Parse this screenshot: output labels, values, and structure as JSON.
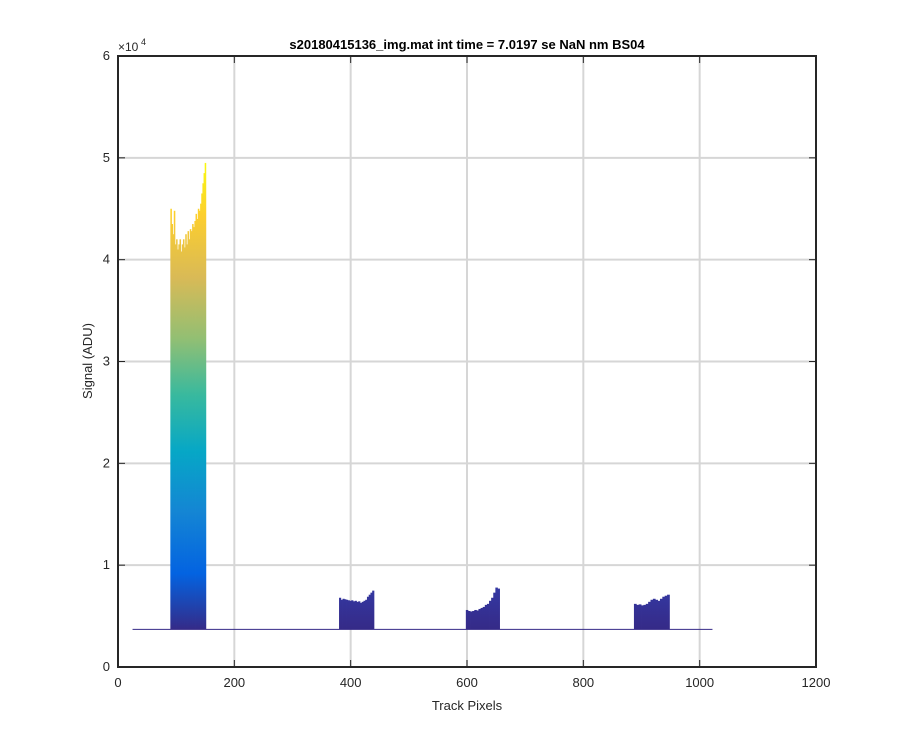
{
  "chart_data": {
    "type": "bar",
    "title": "s20180415136_img.mat int time = 7.0197 se  NaN nm BS04",
    "xlabel": "Track Pixels",
    "ylabel": "Signal (ADU)",
    "xlim": [
      0,
      1200
    ],
    "ylim": [
      0,
      60000
    ],
    "xticks": [
      "0",
      "200",
      "400",
      "600",
      "800",
      "1000",
      "1200"
    ],
    "yticks": [
      "0",
      "1",
      "2",
      "3",
      "4",
      "5",
      "6"
    ],
    "y_exponent_base": "×10",
    "y_exponent_power": "4",
    "grid": true,
    "colormap": "parula",
    "x_range": [
      25,
      1022
    ],
    "baseline_signal": 3700,
    "series": [
      {
        "x_start": 90,
        "x_end": 151,
        "values": [
          45000,
          43500,
          42500,
          44800,
          41500,
          42000,
          41000,
          41500,
          42000,
          40800,
          41500,
          42000,
          41200,
          42500,
          41500,
          42800,
          42000,
          43000,
          42800,
          43500,
          43200,
          43800,
          44500,
          44000,
          45000,
          44800,
          45500,
          46500,
          47500,
          48500,
          49500
        ]
      },
      {
        "x_start": 380,
        "x_end": 440,
        "values": [
          6800,
          6600,
          6700,
          6650,
          6600,
          6550,
          6500,
          6550,
          6450,
          6500,
          6400,
          6450,
          6300,
          6400,
          6500,
          6600,
          6900,
          7100,
          7300,
          7500
        ]
      },
      {
        "x_start": 598,
        "x_end": 656,
        "values": [
          5600,
          5500,
          5450,
          5500,
          5600,
          5550,
          5700,
          5800,
          5900,
          6100,
          6200,
          6500,
          6800,
          7300,
          7800,
          7700
        ]
      },
      {
        "x_start": 887,
        "x_end": 948,
        "values": [
          6200,
          6100,
          6150,
          6050,
          6100,
          6200,
          6400,
          6600,
          6700,
          6600,
          6500,
          6700,
          6900,
          7000,
          7100
        ]
      }
    ]
  }
}
